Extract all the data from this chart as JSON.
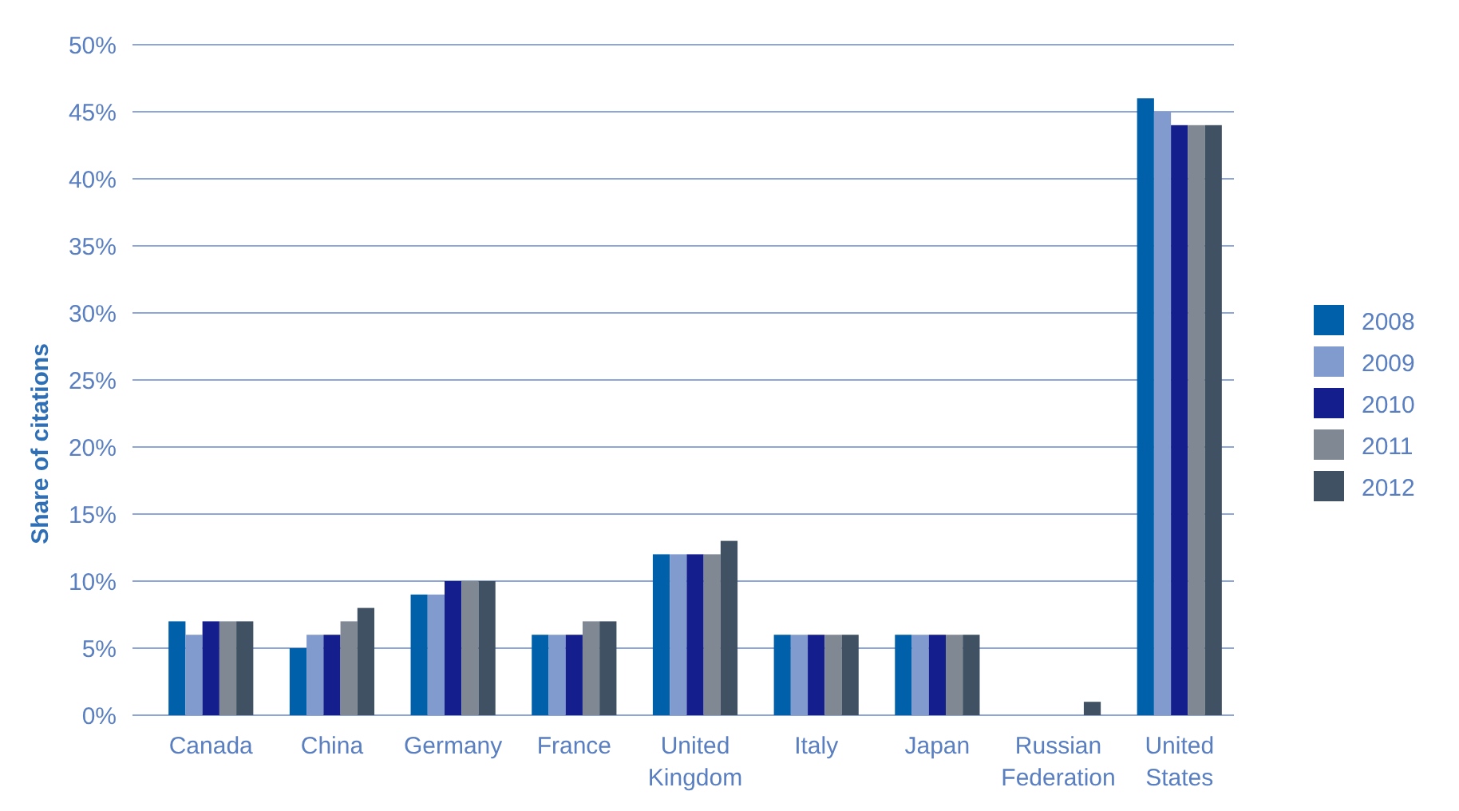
{
  "chart_data": {
    "type": "bar",
    "ylabel": "Share of citations",
    "categories": [
      "Canada",
      "China",
      "Germany",
      "France",
      "United Kingdom",
      "Italy",
      "Japan",
      "Russian Federation",
      "United States"
    ],
    "series": [
      {
        "name": "2008",
        "color": "#0060aa",
        "values": [
          7,
          5,
          9,
          6,
          12,
          6,
          6,
          null,
          46
        ]
      },
      {
        "name": "2009",
        "color": "#829bcf",
        "values": [
          6,
          6,
          9,
          6,
          12,
          6,
          6,
          null,
          45
        ]
      },
      {
        "name": "2010",
        "color": "#141e8c",
        "values": [
          7,
          6,
          10,
          6,
          12,
          6,
          6,
          null,
          44
        ]
      },
      {
        "name": "2011",
        "color": "#7f8893",
        "values": [
          7,
          7,
          10,
          7,
          12,
          6,
          6,
          null,
          44
        ]
      },
      {
        "name": "2012",
        "color": "#3f5163",
        "values": [
          7,
          8,
          10,
          7,
          13,
          6,
          6,
          1,
          44
        ]
      }
    ],
    "ylim": [
      0,
      50
    ],
    "yticks": [
      {
        "value": 0,
        "label": "0%"
      },
      {
        "value": 5,
        "label": "5%"
      },
      {
        "value": 10,
        "label": "10%"
      },
      {
        "value": 15,
        "label": "15%"
      },
      {
        "value": 20,
        "label": "20%"
      },
      {
        "value": 25,
        "label": "25%"
      },
      {
        "value": 30,
        "label": "30%"
      },
      {
        "value": 35,
        "label": "35%"
      },
      {
        "value": 40,
        "label": "40%"
      },
      {
        "value": 45,
        "label": "45%"
      },
      {
        "value": 50,
        "label": "50%"
      }
    ],
    "grid": "y",
    "legend": "right"
  }
}
